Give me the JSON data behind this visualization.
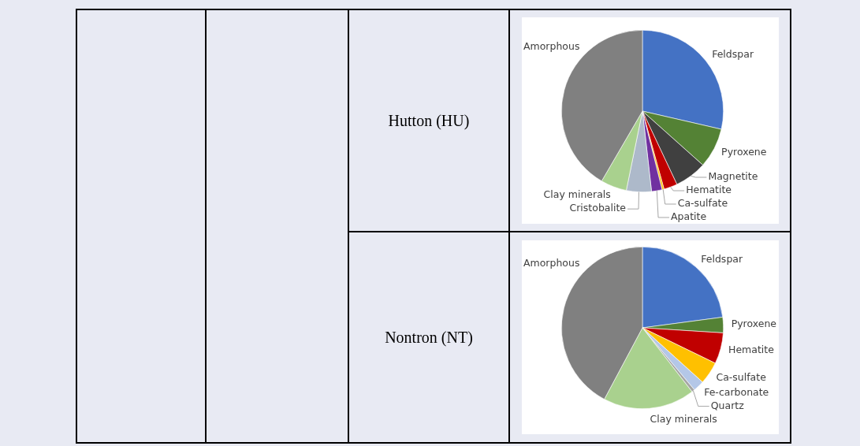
{
  "chart_data": [
    {
      "type": "pie",
      "title": "Hutton (HU)",
      "categories": [
        "Feldspar",
        "Pyroxene",
        "Magnetite",
        "Hematite",
        "Ca-sulfate",
        "Apatite",
        "Cristobalite",
        "Clay minerals",
        "Amorphous"
      ],
      "values": [
        28.6,
        8,
        6.4,
        2.7,
        0.4,
        2.1,
        5,
        5.2,
        41.6
      ],
      "colors": [
        "#4472c4",
        "#548235",
        "#404040",
        "#c00000",
        "#ffc000",
        "#7030a0",
        "#adb9ca",
        "#a9d18e",
        "#808080"
      ]
    },
    {
      "type": "pie",
      "title": "Nontron (NT)",
      "categories": [
        "Feldspar",
        "Pyroxene",
        "Hematite",
        "Ca-sulfate",
        "Fe-carbonate",
        "Quartz",
        "Clay minerals",
        "Amorphous"
      ],
      "values": [
        22.9,
        3.1,
        6.2,
        4.5,
        2.2,
        0.6,
        18.3,
        42.2
      ],
      "colors": [
        "#4472c4",
        "#548235",
        "#c00000",
        "#ffc000",
        "#b4c7e7",
        "#a5a5a5",
        "#a9d18e",
        "#808080"
      ]
    }
  ]
}
